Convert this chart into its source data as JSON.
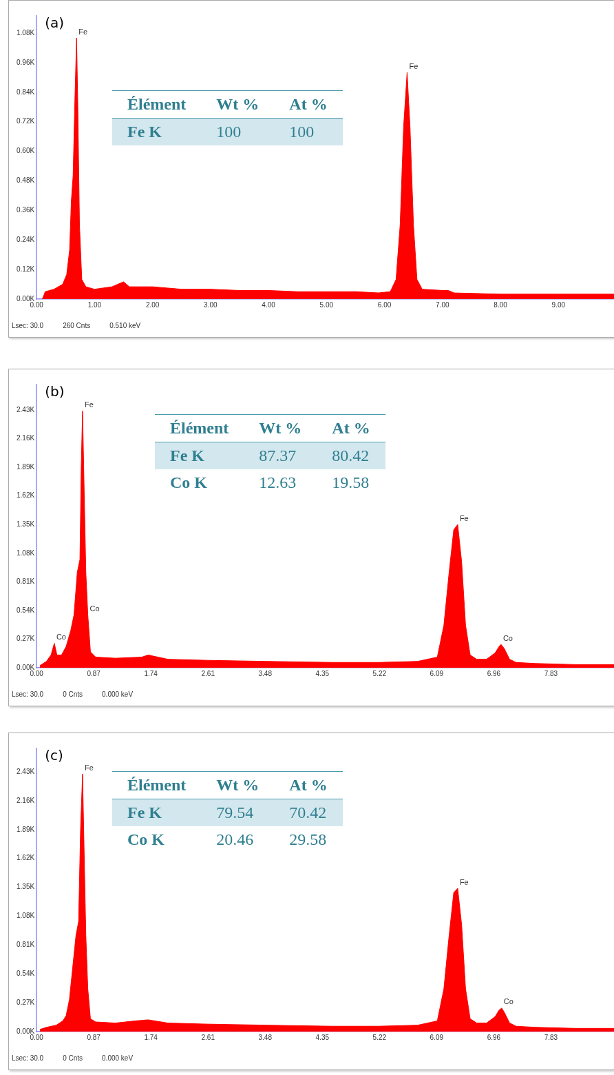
{
  "chart_data": [
    {
      "type": "area",
      "title": "(a)",
      "color": "#ff0000",
      "x": [
        0.1,
        0.15,
        0.3,
        0.45,
        0.52,
        0.57,
        0.6,
        0.63,
        0.66,
        0.69,
        0.71,
        0.74,
        0.78,
        0.85,
        1.0,
        1.3,
        1.5,
        1.6,
        2.0,
        2.5,
        3.0,
        3.5,
        4.0,
        4.5,
        5.0,
        5.5,
        5.9,
        6.1,
        6.2,
        6.27,
        6.33,
        6.39,
        6.44,
        6.5,
        6.56,
        6.65,
        7.0,
        7.1,
        7.2,
        8.0,
        9.0,
        9.97
      ],
      "values": [
        0.0,
        0.03,
        0.04,
        0.06,
        0.1,
        0.2,
        0.4,
        0.5,
        0.8,
        1.06,
        0.8,
        0.3,
        0.08,
        0.05,
        0.04,
        0.05,
        0.07,
        0.05,
        0.05,
        0.04,
        0.04,
        0.035,
        0.035,
        0.03,
        0.03,
        0.03,
        0.025,
        0.03,
        0.08,
        0.3,
        0.7,
        0.92,
        0.7,
        0.3,
        0.08,
        0.04,
        0.035,
        0.035,
        0.025,
        0.02,
        0.02,
        0.02
      ],
      "xlim": [
        0,
        9.97
      ],
      "xticks": [
        {
          "value": 0,
          "label": "0.00"
        },
        {
          "value": 1,
          "label": "1.00"
        },
        {
          "value": 2,
          "label": "2.00"
        },
        {
          "value": 3,
          "label": "3.00"
        },
        {
          "value": 4,
          "label": "4.00"
        },
        {
          "value": 5,
          "label": "5.00"
        },
        {
          "value": 6,
          "label": "6.00"
        },
        {
          "value": 7,
          "label": "7.00"
        },
        {
          "value": 8,
          "label": "8.00"
        },
        {
          "value": 9,
          "label": "9.00"
        }
      ],
      "ylim": [
        0,
        1.15
      ],
      "yticks": [
        {
          "value": 0,
          "label": "0.00K"
        },
        {
          "value": 0.12,
          "label": "0.12K"
        },
        {
          "value": 0.24,
          "label": "0.24K"
        },
        {
          "value": 0.36,
          "label": "0.36K"
        },
        {
          "value": 0.48,
          "label": "0.48K"
        },
        {
          "value": 0.6,
          "label": "0.60K"
        },
        {
          "value": 0.72,
          "label": "0.72K"
        },
        {
          "value": 0.84,
          "label": "0.84K"
        },
        {
          "value": 0.96,
          "label": "0.96K"
        },
        {
          "value": 1.08,
          "label": "1.08K"
        }
      ],
      "annotations": [
        {
          "text": "Fe",
          "x": 0.69,
          "y": 1.06
        },
        {
          "text": "Fe",
          "x": 6.39,
          "y": 0.92
        },
        "Élément",
        "Wt %",
        "At %",
        "Fe K",
        "100",
        "100",
        "Lsec: 30.0",
        "260 Cnts",
        "0.510 keV"
      ]
    },
    {
      "type": "area",
      "title": "(b)",
      "color": "#ff0000",
      "x": [
        0.05,
        0.15,
        0.22,
        0.27,
        0.31,
        0.38,
        0.45,
        0.52,
        0.57,
        0.62,
        0.66,
        0.68,
        0.7,
        0.72,
        0.75,
        0.78,
        0.82,
        0.9,
        1.2,
        1.6,
        1.7,
        2.0,
        2.6,
        3.5,
        4.5,
        5.2,
        5.8,
        6.1,
        6.2,
        6.28,
        6.35,
        6.41,
        6.47,
        6.53,
        6.6,
        6.7,
        6.85,
        6.98,
        7.04,
        7.07,
        7.12,
        7.2,
        7.3,
        7.6,
        8.2,
        8.8
      ],
      "values": [
        0.02,
        0.06,
        0.12,
        0.23,
        0.12,
        0.12,
        0.2,
        0.35,
        0.5,
        0.9,
        1.02,
        1.9,
        2.42,
        1.8,
        0.9,
        0.5,
        0.15,
        0.1,
        0.09,
        0.1,
        0.12,
        0.08,
        0.07,
        0.06,
        0.05,
        0.05,
        0.06,
        0.1,
        0.4,
        0.9,
        1.3,
        1.35,
        1.0,
        0.4,
        0.12,
        0.08,
        0.08,
        0.14,
        0.2,
        0.22,
        0.18,
        0.08,
        0.05,
        0.04,
        0.03,
        0.03
      ],
      "xlim": [
        0,
        8.8
      ],
      "xticks": [
        {
          "value": 0,
          "label": "0.00"
        },
        {
          "value": 0.87,
          "label": "0.87"
        },
        {
          "value": 1.74,
          "label": "1.74"
        },
        {
          "value": 2.61,
          "label": "2.61"
        },
        {
          "value": 3.48,
          "label": "3.48"
        },
        {
          "value": 4.35,
          "label": "4.35"
        },
        {
          "value": 5.22,
          "label": "5.22"
        },
        {
          "value": 6.09,
          "label": "6.09"
        },
        {
          "value": 6.96,
          "label": "6.96"
        },
        {
          "value": 7.83,
          "label": "7.83"
        }
      ],
      "ylim": [
        0,
        2.67
      ],
      "yticks": [
        {
          "value": 0,
          "label": "0.00K"
        },
        {
          "value": 0.27,
          "label": "0.27K"
        },
        {
          "value": 0.54,
          "label": "0.54K"
        },
        {
          "value": 0.81,
          "label": "0.81K"
        },
        {
          "value": 1.08,
          "label": "1.08K"
        },
        {
          "value": 1.35,
          "label": "1.35K"
        },
        {
          "value": 1.62,
          "label": "1.62K"
        },
        {
          "value": 1.89,
          "label": "1.89K"
        },
        {
          "value": 2.16,
          "label": "2.16K"
        },
        {
          "value": 2.43,
          "label": "2.43K"
        }
      ],
      "annotations": [
        {
          "text": "Co",
          "x": 0.27,
          "y": 0.23
        },
        {
          "text": "Fe",
          "x": 0.7,
          "y": 2.42
        },
        {
          "text": "Co",
          "x": 0.78,
          "y": 0.5
        },
        {
          "text": "Fe",
          "x": 6.41,
          "y": 1.35
        },
        {
          "text": "Co",
          "x": 7.07,
          "y": 0.22
        },
        "Élément",
        "Wt %",
        "At %",
        "Fe K",
        "87.37",
        "80.42",
        "Co K",
        "12.63",
        "19.58",
        "Lsec: 30.0",
        "0 Cnts",
        "0.000 keV"
      ]
    },
    {
      "type": "area",
      "title": "(c)",
      "color": "#ff0000",
      "x": [
        0.05,
        0.15,
        0.3,
        0.4,
        0.45,
        0.5,
        0.55,
        0.6,
        0.64,
        0.67,
        0.7,
        0.72,
        0.75,
        0.78,
        0.82,
        0.9,
        1.2,
        1.5,
        1.7,
        2.0,
        2.6,
        3.5,
        4.5,
        5.2,
        5.8,
        6.1,
        6.2,
        6.28,
        6.35,
        6.41,
        6.47,
        6.53,
        6.6,
        6.7,
        6.85,
        6.98,
        7.04,
        7.08,
        7.12,
        7.2,
        7.3,
        7.6,
        8.2,
        8.8
      ],
      "values": [
        0.02,
        0.04,
        0.06,
        0.1,
        0.15,
        0.3,
        0.6,
        0.9,
        1.03,
        1.9,
        2.41,
        1.8,
        0.9,
        0.4,
        0.12,
        0.09,
        0.08,
        0.1,
        0.11,
        0.08,
        0.07,
        0.06,
        0.05,
        0.05,
        0.06,
        0.1,
        0.4,
        0.9,
        1.3,
        1.34,
        1.0,
        0.4,
        0.12,
        0.08,
        0.08,
        0.14,
        0.2,
        0.22,
        0.18,
        0.08,
        0.05,
        0.04,
        0.03,
        0.03
      ],
      "xlim": [
        0,
        8.8
      ],
      "xticks": [
        {
          "value": 0,
          "label": "0.00"
        },
        {
          "value": 0.87,
          "label": "0.87"
        },
        {
          "value": 1.74,
          "label": "1.74"
        },
        {
          "value": 2.61,
          "label": "2.61"
        },
        {
          "value": 3.48,
          "label": "3.48"
        },
        {
          "value": 4.35,
          "label": "4.35"
        },
        {
          "value": 5.22,
          "label": "5.22"
        },
        {
          "value": 6.09,
          "label": "6.09"
        },
        {
          "value": 6.96,
          "label": "6.96"
        },
        {
          "value": 7.83,
          "label": "7.83"
        }
      ],
      "ylim": [
        0,
        2.65
      ],
      "yticks": [
        {
          "value": 0,
          "label": "0.00K"
        },
        {
          "value": 0.27,
          "label": "0.27K"
        },
        {
          "value": 0.54,
          "label": "0.54K"
        },
        {
          "value": 0.81,
          "label": "0.81K"
        },
        {
          "value": 1.08,
          "label": "1.08K"
        },
        {
          "value": 1.35,
          "label": "1.35K"
        },
        {
          "value": 1.62,
          "label": "1.62K"
        },
        {
          "value": 1.89,
          "label": "1.89K"
        },
        {
          "value": 2.16,
          "label": "2.16K"
        },
        {
          "value": 2.43,
          "label": "2.43K"
        }
      ],
      "annotations": [
        {
          "text": "Fe",
          "x": 0.7,
          "y": 2.41
        },
        {
          "text": "Fe",
          "x": 6.41,
          "y": 1.34
        },
        {
          "text": "Co",
          "x": 7.08,
          "y": 0.22
        },
        "Élément",
        "Wt %",
        "At %",
        "Fe K",
        "79.54",
        "70.42",
        "Co K",
        "20.46",
        "29.58",
        "Lsec: 30.0",
        "0 Cnts",
        "0.000 keV"
      ]
    }
  ]
}
